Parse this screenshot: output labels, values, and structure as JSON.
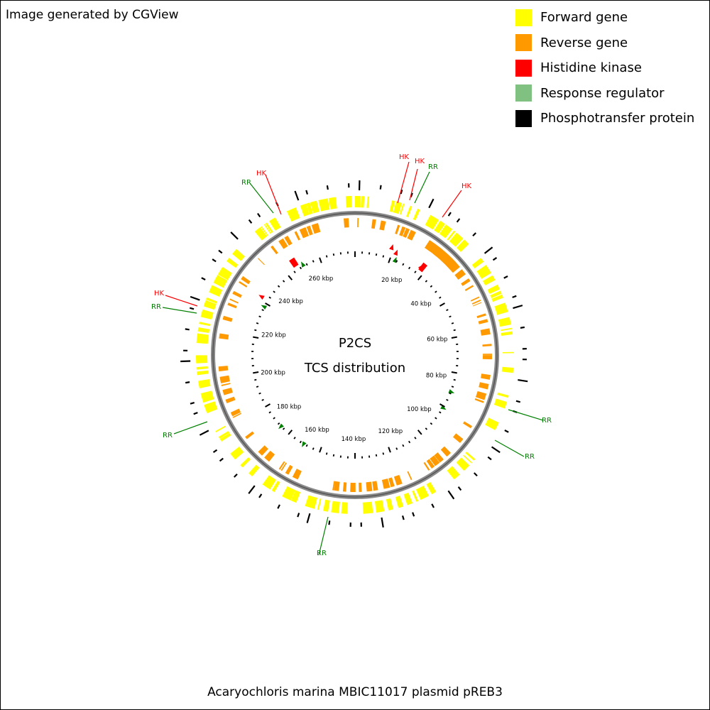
{
  "header": {
    "credit": "Image generated by CGView"
  },
  "legend": [
    {
      "label": "Forward gene",
      "color": "#ffff00"
    },
    {
      "label": "Reverse gene",
      "color": "#ff9900"
    },
    {
      "label": "Histidine kinase",
      "color": "#ff0000"
    },
    {
      "label": "Response regulator",
      "color": "#80c080"
    },
    {
      "label": "Phosphotransfer protein",
      "color": "#000000"
    }
  ],
  "map": {
    "center_title": "P2CS",
    "center_subtitle": "TCS distribution",
    "ruler_labels": [
      "20 kbp",
      "40 kbp",
      "60 kbp",
      "80 kbp",
      "100 kbp",
      "120 kbp",
      "140 kbp",
      "160 kbp",
      "180 kbp",
      "200 kbp",
      "220 kbp",
      "240 kbp",
      "260 kbp"
    ],
    "callouts": [
      {
        "text": "HK",
        "color": "#ff0000"
      },
      {
        "text": "HK",
        "color": "#ff0000"
      },
      {
        "text": "RR",
        "color": "#008000"
      },
      {
        "text": "HK",
        "color": "#ff0000"
      },
      {
        "text": "RR",
        "color": "#008000"
      },
      {
        "text": "RR",
        "color": "#008000"
      },
      {
        "text": "RR",
        "color": "#008000"
      },
      {
        "text": "RR",
        "color": "#008000"
      },
      {
        "text": "RR",
        "color": "#008000"
      },
      {
        "text": "HK",
        "color": "#ff0000"
      },
      {
        "text": "RR",
        "color": "#008000"
      },
      {
        "text": "HK",
        "color": "#ff0000"
      }
    ]
  },
  "footer": {
    "organism": "Acaryochloris marina MBIC11017 plasmid pREB3"
  }
}
